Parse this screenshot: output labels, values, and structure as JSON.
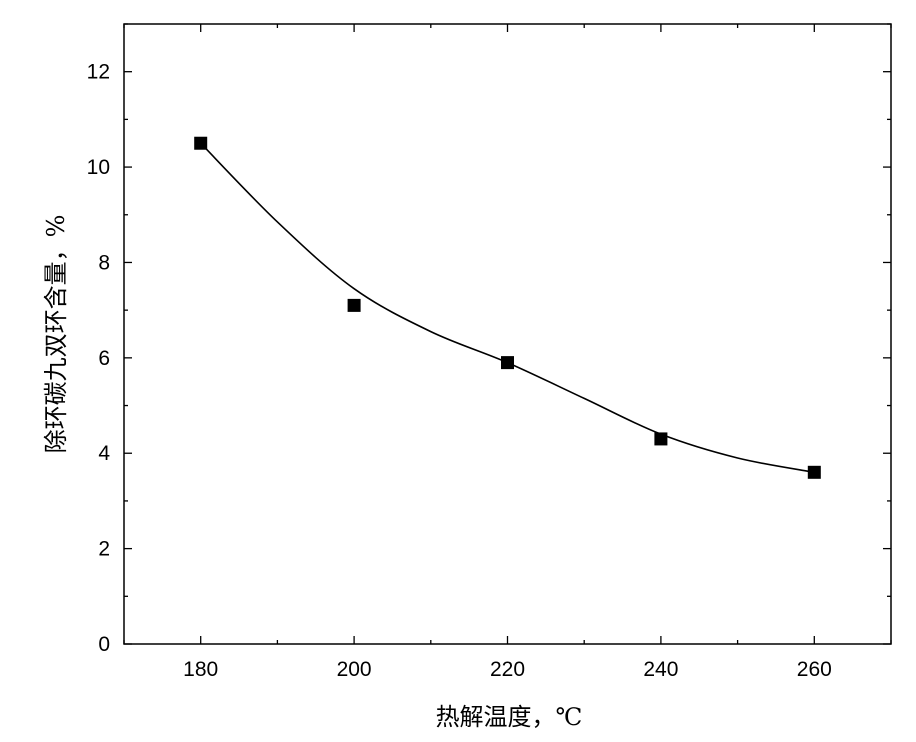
{
  "chart_data": {
    "type": "scatter",
    "xlabel": "热解温度，℃",
    "ylabel": "除环碳九双环含量，%",
    "xlim": [
      170,
      270
    ],
    "ylim": [
      0,
      13
    ],
    "x_ticks": [
      180,
      200,
      220,
      240,
      260
    ],
    "y_ticks": [
      0,
      2,
      4,
      6,
      8,
      10,
      12
    ],
    "x_minor_step": 10,
    "y_minor_step": 1,
    "grid": false,
    "legend": "none",
    "series": [
      {
        "kind": "points",
        "marker": "square",
        "color": "#000000",
        "x": [
          180,
          200,
          220,
          240,
          260
        ],
        "y": [
          10.5,
          7.1,
          5.9,
          4.3,
          3.6
        ]
      },
      {
        "kind": "fit-line",
        "color": "#000000",
        "x": [
          180,
          190,
          200,
          210,
          220,
          230,
          240,
          250,
          260
        ],
        "y": [
          10.5,
          8.85,
          7.45,
          6.55,
          5.9,
          5.15,
          4.4,
          3.9,
          3.6
        ]
      }
    ]
  }
}
